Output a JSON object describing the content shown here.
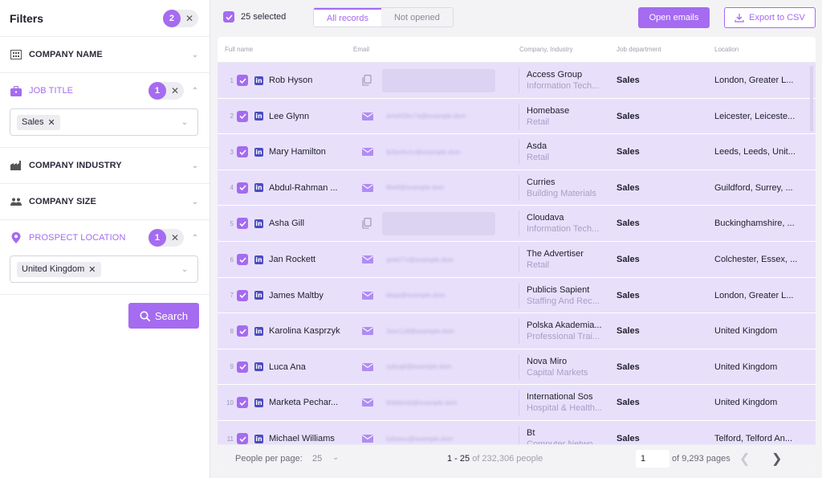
{
  "sidebar": {
    "title": "Filters",
    "count": "2",
    "clear": "✕",
    "company_name": "COMPANY NAME",
    "job_title": {
      "label": "JOB TITLE",
      "count": "1",
      "tag": "Sales"
    },
    "company_industry": "COMPANY INDUSTRY",
    "company_size": "COMPANY SIZE",
    "prospect_location": {
      "label": "PROSPECT LOCATION",
      "count": "1",
      "tag": "United Kingdom"
    },
    "search": "Search"
  },
  "topbar": {
    "selected": "25 selected",
    "tabs": [
      "All records",
      "Not opened"
    ],
    "open_emails": "Open emails",
    "export_csv": "Export to CSV"
  },
  "table": {
    "headers": {
      "full_name": "Full name",
      "email": "Email",
      "company": "Company, Industry",
      "department": "Job department",
      "location": "Location"
    },
    "rows": [
      {
        "idx": "1",
        "name": "Rob Hyson",
        "email_type": "copy",
        "email": "",
        "company": "Access Group",
        "industry": "Information Tech...",
        "dept": "Sales",
        "location": "London, Greater L..."
      },
      {
        "idx": "2",
        "name": "Lee Glynn",
        "email_type": "mail",
        "email": "ameh2lzc7a@example.dom",
        "company": "Homebase",
        "industry": "Retail",
        "dept": "Sales",
        "location": "Leicester, Leiceste..."
      },
      {
        "idx": "3",
        "name": "Mary Hamilton",
        "email_type": "mail",
        "email": "fp3avhv1v@example.dom",
        "company": "Asda",
        "industry": "Retail",
        "dept": "Sales",
        "location": "Leeds, Leeds, Unit..."
      },
      {
        "idx": "4",
        "name": "Abdul-Rahman ...",
        "email_type": "mail",
        "email": "l8w9@example.dom",
        "company": "Curries",
        "industry": "Building Materials",
        "dept": "Sales",
        "location": "Guildford, Surrey, ..."
      },
      {
        "idx": "5",
        "name": "Asha Gill",
        "email_type": "copy",
        "email": "",
        "company": "Cloudava",
        "industry": "Information Tech...",
        "dept": "Sales",
        "location": "Buckinghamshire, ..."
      },
      {
        "idx": "6",
        "name": "Jan Rockett",
        "email_type": "mail",
        "email": "qmk27v@example.dom",
        "company": "The Advertiser",
        "industry": "Retail",
        "dept": "Sales",
        "location": "Colchester, Essex, ..."
      },
      {
        "idx": "7",
        "name": "James Maltby",
        "email_type": "mail",
        "email": "kbpp@example.dom",
        "company": "Publicis Sapient",
        "industry": "Staffing And Rec...",
        "dept": "Sales",
        "location": "London, Greater L..."
      },
      {
        "idx": "8",
        "name": "Karolina Kasprzyk",
        "email_type": "mail",
        "email": "2eor1z8@example.dom",
        "company": "Polska Akademia...",
        "industry": "Professional Trai...",
        "dept": "Sales",
        "location": "United Kingdom"
      },
      {
        "idx": "9",
        "name": "Luca Ana",
        "email_type": "mail",
        "email": "zybyq0@example.dom",
        "company": "Nova Miro",
        "industry": "Capital Markets",
        "dept": "Sales",
        "location": "United Kingdom"
      },
      {
        "idx": "10",
        "name": "Marketa Pechar...",
        "email_type": "mail",
        "email": "6hbkkmb@example.dom",
        "company": "International Sos",
        "industry": "Hospital & Health...",
        "dept": "Sales",
        "location": "United Kingdom"
      },
      {
        "idx": "11",
        "name": "Michael Williams",
        "email_type": "mail",
        "email": "lu6zecu@example.dom",
        "company": "Bt",
        "industry": "Computer Netwo...",
        "dept": "Sales",
        "location": "Telford, Telford An..."
      }
    ]
  },
  "footer": {
    "per_page_label": "People per page:",
    "per_page_value": "25",
    "range_bold": "1 - 25",
    "range_rest": "of 232,306 people",
    "page_input": "1",
    "page_of": "of 9,293 pages"
  },
  "colors": {
    "accent": "#a56bf0",
    "row_bg": "#e8e0fb"
  }
}
